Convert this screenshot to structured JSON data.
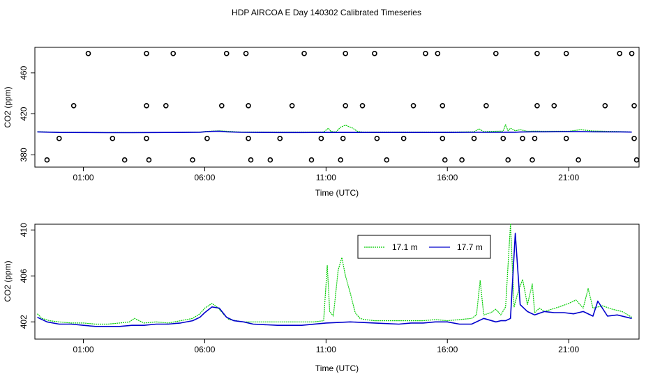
{
  "title": "HDP AIRCOA E  Day 140302  Calibrated Timeseries",
  "colors": {
    "green": "#00cc00",
    "blue": "#0000cc",
    "black": "#000000"
  },
  "chart_data": [
    {
      "type": "line",
      "xlabel": "Time (UTC)",
      "ylabel": "CO2 (ppm)",
      "xlim": [
        -1.0,
        23.9
      ],
      "ylim": [
        368,
        485
      ],
      "x_ticks": [
        1,
        6,
        11,
        16,
        21
      ],
      "x_tick_labels": [
        "01:00",
        "06:00",
        "11:00",
        "16:00",
        "21:00"
      ],
      "y_ticks": [
        380,
        420,
        460
      ],
      "y_tick_labels": [
        "380",
        "420",
        "460"
      ],
      "series": [
        {
          "color": "#00cc00",
          "kind": "line",
          "x": [
            -0.9,
            0,
            1,
            2,
            3,
            4,
            5,
            5.8,
            6,
            6.3,
            6.6,
            6.9,
            7.5,
            9,
            10,
            10.9,
            11.1,
            11.2,
            11.4,
            11.6,
            11.8,
            12.1,
            12.3,
            12.5,
            13,
            15,
            16,
            17.1,
            17.3,
            17.5,
            18,
            18.3,
            18.4,
            18.5,
            18.6,
            18.8,
            19,
            19.3,
            19.6,
            20,
            21,
            21.5,
            22,
            22.5,
            23,
            23.6
          ],
          "y": [
            402.7,
            402,
            402,
            401.9,
            401.9,
            401.9,
            402,
            402.2,
            402.8,
            403.2,
            403.5,
            403,
            402.3,
            402.2,
            402.2,
            402.3,
            406,
            402.8,
            402.3,
            407,
            409,
            406,
            402.8,
            402.2,
            402.2,
            402.2,
            402.2,
            402.5,
            405.5,
            402.6,
            403,
            403.2,
            409.5,
            403.5,
            406,
            403.5,
            404.5,
            403,
            403.2,
            403,
            403,
            404.5,
            403.3,
            403,
            402.8,
            402.3
          ]
        },
        {
          "color": "#0000cc",
          "kind": "line",
          "x": [
            -0.9,
            0,
            1,
            2,
            3,
            4,
            5,
            5.8,
            6,
            6.3,
            6.6,
            6.9,
            7.5,
            9,
            10,
            11,
            12,
            13,
            15,
            16,
            17,
            17.5,
            18,
            18.3,
            18.5,
            18.6,
            18.8,
            19,
            19.5,
            20,
            21,
            21.5,
            22,
            23,
            23.6
          ],
          "y": [
            402.4,
            401.9,
            401.8,
            401.7,
            401.7,
            401.8,
            401.9,
            402.1,
            402.5,
            402.9,
            403.1,
            402.5,
            402,
            401.8,
            401.8,
            401.9,
            401.9,
            401.9,
            401.9,
            401.9,
            402,
            402,
            402,
            402,
            402.1,
            402.1,
            402,
            402.3,
            402.5,
            402.5,
            402.6,
            402.6,
            402.5,
            402.4,
            402.2
          ]
        },
        {
          "color": "#000000",
          "kind": "scatter",
          "x": [
            1.2,
            3.6,
            4.7,
            6.9,
            7.7,
            10.1,
            11.8,
            13.0,
            15.1,
            15.6,
            18.0,
            19.7,
            20.9,
            23.1,
            23.6,
            0.6,
            3.6,
            4.4,
            6.7,
            7.8,
            9.6,
            11.8,
            12.5,
            14.6,
            15.8,
            17.6,
            19.7,
            20.4,
            22.5,
            23.7,
            0.0,
            2.2,
            3.6,
            6.1,
            7.8,
            9.1,
            10.8,
            11.7,
            13.1,
            14.2,
            15.8,
            17.1,
            18.3,
            19.1,
            19.6,
            20.9,
            23.7,
            -0.5,
            2.7,
            3.7,
            5.5,
            7.9,
            8.7,
            10.4,
            11.6,
            13.5,
            15.9,
            16.6,
            18.5,
            19.5,
            21.4,
            23.8
          ],
          "y": [
            479,
            479,
            479,
            479,
            479,
            479,
            479,
            479,
            479,
            479,
            479,
            479,
            479,
            479,
            479,
            428,
            428,
            428,
            428,
            428,
            428,
            428,
            428,
            428,
            428,
            428,
            428,
            428,
            428,
            428,
            396,
            396,
            396,
            396,
            396,
            396,
            396,
            396,
            396,
            396,
            396,
            396,
            396,
            396,
            396,
            396,
            396,
            375,
            375,
            375,
            375,
            375,
            375,
            375,
            375,
            375,
            375,
            375,
            375,
            375,
            375,
            375
          ]
        }
      ]
    },
    {
      "type": "line",
      "xlabel": "Time (UTC)",
      "ylabel": "CO2 (ppm)",
      "xlim": [
        -1.0,
        23.9
      ],
      "ylim": [
        400.5,
        410.5
      ],
      "x_ticks": [
        1,
        6,
        11,
        16,
        21
      ],
      "x_tick_labels": [
        "01:00",
        "06:00",
        "11:00",
        "16:00",
        "21:00"
      ],
      "y_ticks": [
        402,
        406,
        410
      ],
      "y_tick_labels": [
        "402",
        "406",
        "410"
      ],
      "legend": "top-right",
      "series": [
        {
          "name": "17.1 m",
          "color": "#00cc00",
          "x": [
            -0.9,
            -0.7,
            -0.4,
            0,
            0.5,
            1,
            1.5,
            2,
            2.5,
            2.9,
            3.1,
            3.5,
            4,
            4.5,
            5,
            5.5,
            5.8,
            6,
            6.3,
            6.5,
            6.6,
            6.8,
            7,
            7.3,
            7.6,
            8,
            9,
            10,
            10.5,
            10.9,
            11.05,
            11.15,
            11.3,
            11.5,
            11.65,
            11.8,
            12,
            12.2,
            12.4,
            12.6,
            13,
            14,
            15,
            15.5,
            16,
            16.5,
            17,
            17.2,
            17.35,
            17.5,
            17.8,
            18,
            18.2,
            18.4,
            18.6,
            18.75,
            18.9,
            19.1,
            19.3,
            19.5,
            19.6,
            19.8,
            20,
            20.3,
            20.6,
            21,
            21.3,
            21.6,
            21.8,
            22,
            22.4,
            22.8,
            23.2,
            23.6
          ],
          "y": [
            402.7,
            402.3,
            402.1,
            402,
            401.9,
            401.9,
            401.8,
            401.8,
            401.9,
            402,
            402.3,
            401.9,
            402,
            401.9,
            402.1,
            402.3,
            402.7,
            403.2,
            403.6,
            403.3,
            403.1,
            402.6,
            402.2,
            402.1,
            402,
            402,
            402,
            402,
            402,
            402.1,
            406.9,
            402.9,
            402.5,
            406.5,
            407.6,
            406,
            404.5,
            402.8,
            402.3,
            402.2,
            402.1,
            402.1,
            402.1,
            402.2,
            402.1,
            402.2,
            402.3,
            402.6,
            405.6,
            402.6,
            402.8,
            403.1,
            402.6,
            403.3,
            410.5,
            403.3,
            404.5,
            405.7,
            403.5,
            405.3,
            402.8,
            403.2,
            402.9,
            403.1,
            403.3,
            403.6,
            403.9,
            403.2,
            404.9,
            403.2,
            403.4,
            403.1,
            402.9,
            402.4
          ]
        },
        {
          "name": "17.7 m",
          "color": "#0000cc",
          "x": [
            -0.9,
            -0.5,
            0,
            0.5,
            1,
            1.5,
            2,
            2.5,
            3,
            3.5,
            4,
            4.5,
            5,
            5.5,
            5.8,
            6,
            6.3,
            6.6,
            6.9,
            7.2,
            7.6,
            8,
            9,
            10,
            11,
            12,
            13,
            14,
            14.5,
            15,
            15.5,
            16,
            16.5,
            17,
            17.5,
            18,
            18.2,
            18.4,
            18.6,
            18.8,
            19,
            19.3,
            19.6,
            20,
            20.4,
            20.8,
            21.2,
            21.6,
            22,
            22.2,
            22.6,
            23,
            23.4,
            23.6
          ],
          "y": [
            402.4,
            402,
            401.8,
            401.8,
            401.7,
            401.6,
            401.6,
            401.6,
            401.7,
            401.7,
            401.8,
            401.8,
            401.9,
            402.1,
            402.4,
            402.8,
            403.3,
            403.2,
            402.4,
            402.1,
            402,
            401.8,
            401.7,
            401.7,
            401.9,
            402,
            401.9,
            401.8,
            401.9,
            401.9,
            402,
            402,
            401.8,
            401.8,
            402.3,
            402,
            402.1,
            402.1,
            402.3,
            409.7,
            403.5,
            402.9,
            402.6,
            402.9,
            402.8,
            402.8,
            402.7,
            402.9,
            402.5,
            403.8,
            402.5,
            402.6,
            402.4,
            402.3
          ]
        }
      ]
    }
  ]
}
